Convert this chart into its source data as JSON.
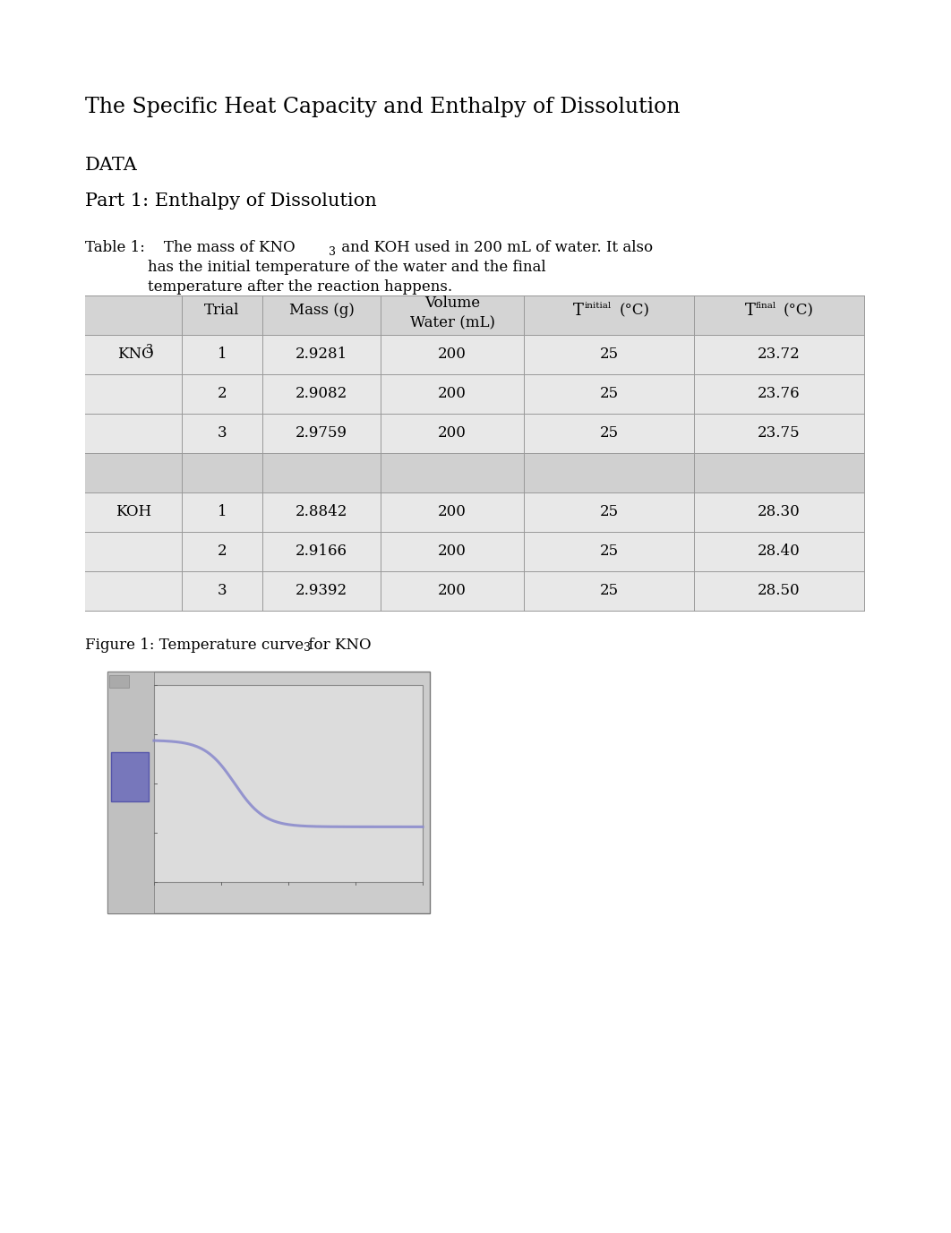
{
  "title": "The Specific Heat Capacity and Enthalpy of Dissolution",
  "section1": "DATA",
  "section2": "Part 1: Enthalpy of Dissolution",
  "table_caption_pre": "Table 1:    The mass of KNO",
  "table_caption_sub": "3",
  "table_caption_post": " and KOH used in 200 mL of water. It also",
  "table_caption_line2": "has the initial temperature of the water and the final",
  "table_caption_line3": "temperature after the reaction happens.",
  "rows": [
    [
      "KNO3",
      "1",
      "2.9281",
      "200",
      "25",
      "23.72"
    ],
    [
      "",
      "2",
      "2.9082",
      "200",
      "25",
      "23.76"
    ],
    [
      "",
      "3",
      "2.9759",
      "200",
      "25",
      "23.75"
    ],
    [
      "",
      "",
      "",
      "",
      "",
      ""
    ],
    [
      "KOH",
      "1",
      "2.8842",
      "200",
      "25",
      "28.30"
    ],
    [
      "",
      "2",
      "2.9166",
      "200",
      "25",
      "28.40"
    ],
    [
      "",
      "3",
      "2.9392",
      "200",
      "25",
      "28.50"
    ]
  ],
  "figure_caption_pre": "Figure 1: Temperature curve for KNO",
  "figure_caption_sub": "3",
  "bg_color": "#ffffff",
  "table_header_bg": "#d4d4d4",
  "table_row_bg_odd": "#e8e8e8",
  "table_row_bg_sep": "#d0d0d0",
  "table_border_color": "#999999",
  "chart_outer_bg": "#cccccc",
  "chart_plot_bg": "#dcdcdc",
  "chart_line_color": "#8888cc",
  "chart_sidebar_color": "#7777bb"
}
